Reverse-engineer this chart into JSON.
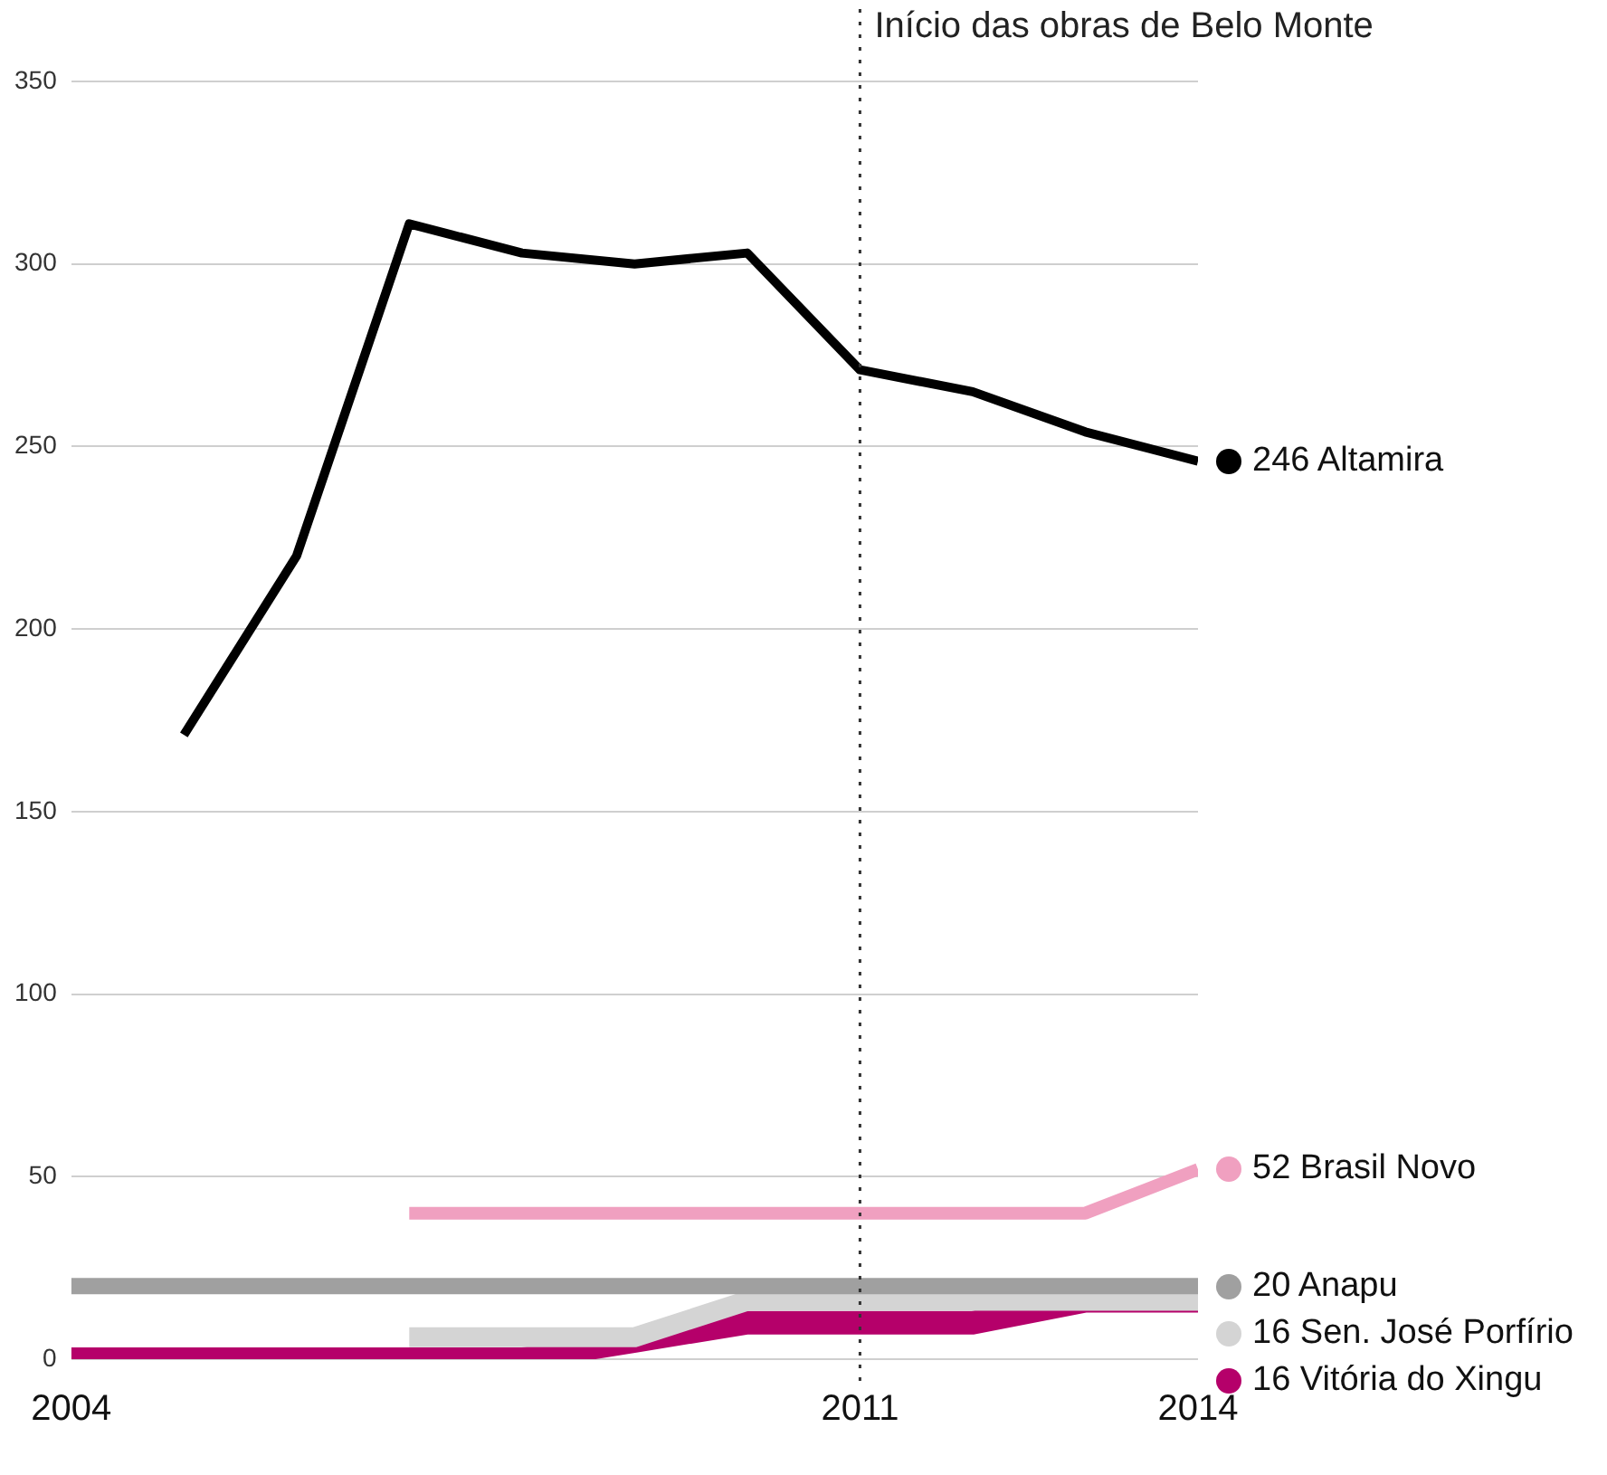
{
  "chart_data": {
    "type": "line",
    "x": [
      2004,
      2005,
      2006,
      2007,
      2008,
      2009,
      2010,
      2011,
      2012,
      2013,
      2014
    ],
    "xlim": [
      2004,
      2014
    ],
    "xticks": [
      2004,
      2011,
      2014
    ],
    "ylim": [
      0,
      350
    ],
    "yticks": [
      0,
      50,
      100,
      150,
      200,
      250,
      300,
      350
    ],
    "grid": "y",
    "legend": false,
    "marker": "none",
    "line_style": "solid",
    "ref_lines": [
      {
        "axis": "x",
        "value": 2011,
        "label": "Início das obras de Belo Monte",
        "line_style": "dotted",
        "color": "#333333"
      }
    ],
    "series": [
      {
        "name": "Altamira",
        "color": "#000000",
        "values": [
          null,
          171,
          220,
          311,
          303,
          300,
          303,
          271,
          265,
          254,
          246
        ],
        "value_labels": [
          null,
          null,
          null,
          null,
          null,
          null,
          null,
          null,
          null,
          null,
          "246"
        ]
      },
      {
        "name": "Brasil Novo",
        "color": "#f0a0c0",
        "values": [
          null,
          null,
          null,
          40,
          40,
          40,
          40,
          40,
          40,
          40,
          52
        ],
        "value_labels": [
          null,
          null,
          null,
          null,
          null,
          null,
          null,
          null,
          null,
          null,
          "52"
        ]
      },
      {
        "name": "Anapu",
        "color": "#a0a0a0",
        "values": [
          20,
          20,
          20,
          20,
          20,
          20,
          20,
          20,
          20,
          20,
          20
        ],
        "value_labels": [
          null,
          null,
          null,
          null,
          null,
          null,
          null,
          null,
          null,
          null,
          "20"
        ]
      },
      {
        "name": "Sen. José Porfírio",
        "color": "#d4d4d4",
        "values": [
          null,
          null,
          null,
          6,
          6,
          6,
          16,
          16,
          16,
          16,
          16
        ],
        "value_labels": [
          null,
          null,
          null,
          null,
          null,
          null,
          null,
          null,
          null,
          null,
          "16"
        ]
      },
      {
        "name": "Vitória do Xingu",
        "color": "#b5006a",
        "values": [
          0,
          0,
          0,
          0,
          0,
          5,
          10,
          10,
          10,
          16,
          16
        ],
        "value_labels": [
          null,
          null,
          null,
          null,
          null,
          null,
          null,
          null,
          null,
          null,
          "16"
        ]
      }
    ]
  }
}
